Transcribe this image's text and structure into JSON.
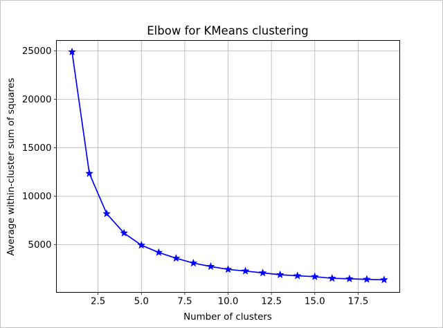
{
  "figure": {
    "background": "#ffffff",
    "border_color": "#c4c4c4"
  },
  "chart_data": {
    "type": "line",
    "title": "Elbow for KMeans clustering",
    "xlabel": "Number of clusters",
    "ylabel": "Average within-cluster sum of squares",
    "x": [
      1,
      2,
      3,
      4,
      5,
      6,
      7,
      8,
      9,
      10,
      11,
      12,
      13,
      14,
      15,
      16,
      17,
      18,
      19
    ],
    "y": [
      24900,
      12350,
      8200,
      6200,
      4950,
      4200,
      3600,
      3100,
      2750,
      2450,
      2280,
      2090,
      1900,
      1790,
      1700,
      1530,
      1480,
      1420,
      1380
    ],
    "x_ticks": [
      2.5,
      5.0,
      7.5,
      10.0,
      12.5,
      15.0,
      17.5
    ],
    "x_tick_labels": [
      "2.5",
      "5.0",
      "7.5",
      "10.0",
      "12.5",
      "15.0",
      "17.5"
    ],
    "y_ticks": [
      5000,
      10000,
      15000,
      20000,
      25000
    ],
    "y_tick_labels": [
      "5000",
      "10000",
      "15000",
      "20000",
      "25000"
    ],
    "xlim": [
      0.1,
      19.9
    ],
    "ylim": [
      80,
      26080
    ],
    "grid": true,
    "legend": false,
    "line_color": "#0000ff",
    "marker": "star",
    "marker_color": "#0000ff",
    "grid_color": "#b0b0b0",
    "spine_color": "#000000"
  }
}
